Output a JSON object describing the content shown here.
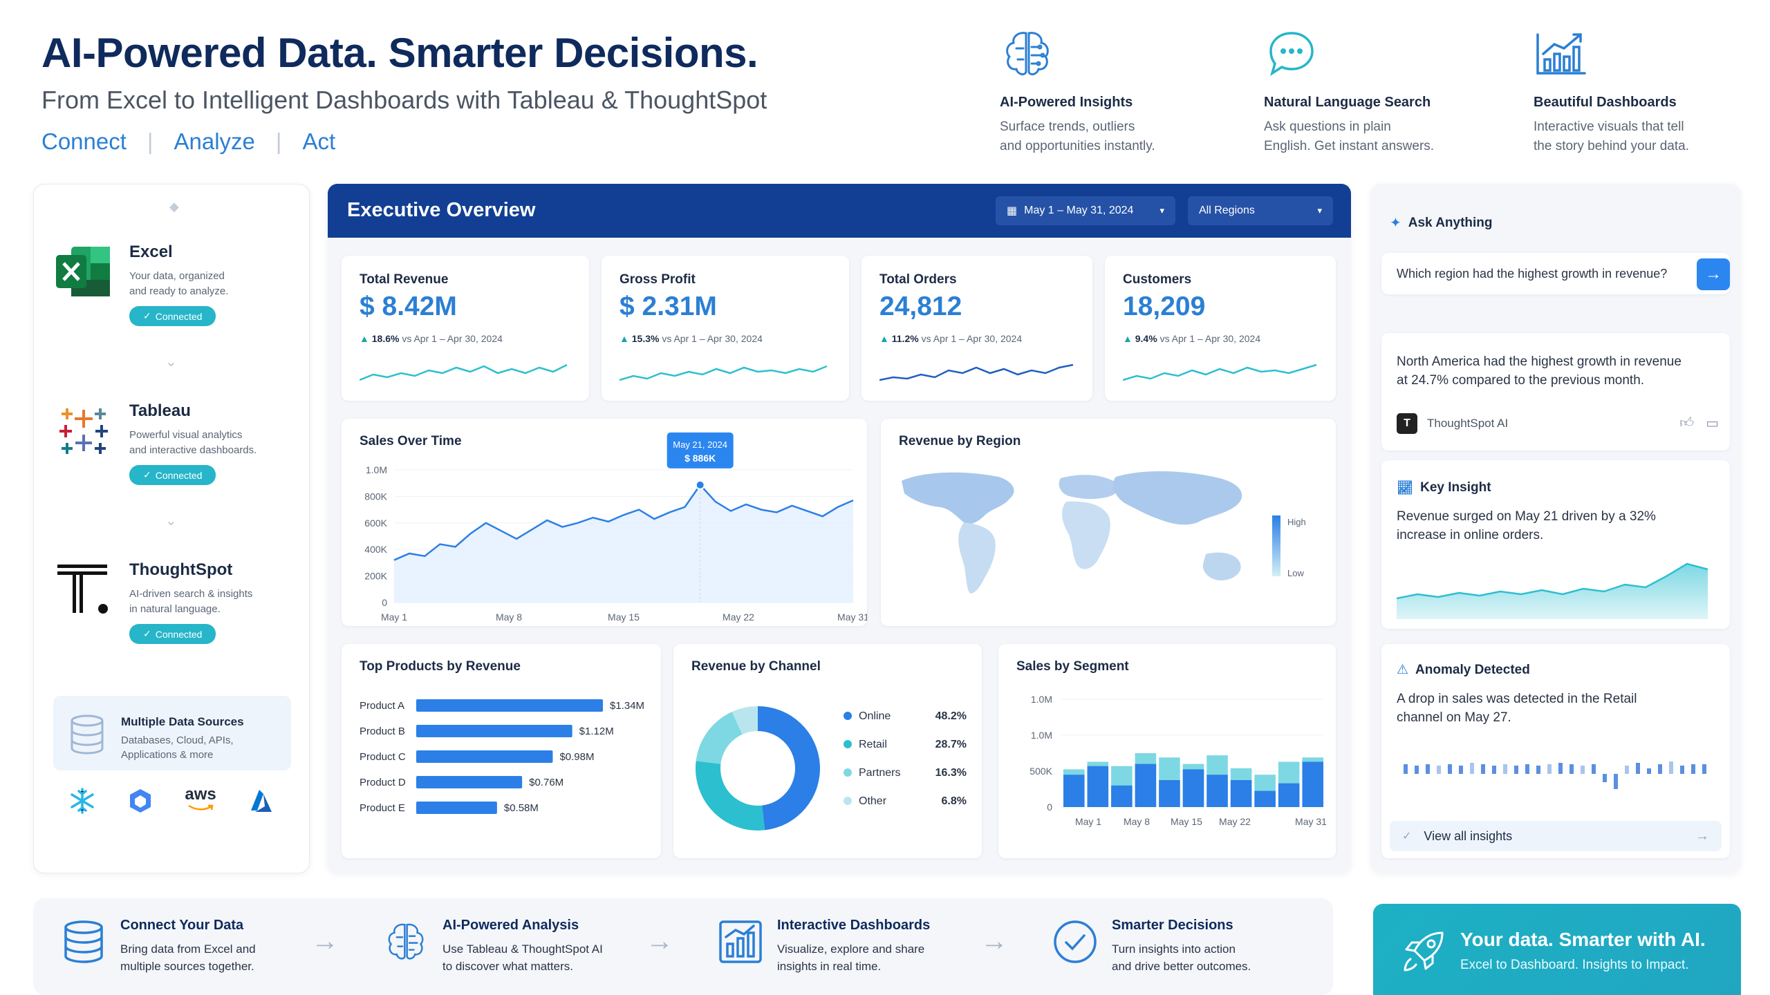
{
  "header": {
    "title": "AI-Powered Data. Smarter Decisions.",
    "subtitle": "From Excel to Intelligent Dashboards with Tableau & ThoughtSpot",
    "links": [
      "Connect",
      "Analyze",
      "Act"
    ]
  },
  "features": [
    {
      "icon": "brain-circuit-icon",
      "title": "AI-Powered Insights",
      "desc1": "Surface trends, outliers",
      "desc2": "and opportunities instantly."
    },
    {
      "icon": "chat-bubble-icon",
      "title": "Natural Language Search",
      "desc1": "Ask questions in plain",
      "desc2": "English. Get instant answers."
    },
    {
      "icon": "bar-chart-trend-icon",
      "title": "Beautiful Dashboards",
      "desc1": "Interactive visuals that tell",
      "desc2": "the story behind your data."
    }
  ],
  "sources": [
    {
      "name": "Excel",
      "desc1": "Your data, organized",
      "desc2": "and ready to analyze.",
      "status": "Connected"
    },
    {
      "name": "Tableau",
      "desc1": "Powerful visual analytics",
      "desc2": "and interactive dashboards.",
      "status": "Connected"
    },
    {
      "name": "ThoughtSpot",
      "desc1": "AI-driven search & insights",
      "desc2": "in natural language.",
      "status": "Connected"
    }
  ],
  "multi_sources": {
    "title": "Multiple Data Sources",
    "desc1": "Databases, Cloud, APIs,",
    "desc2": "Applications & more",
    "aws": "aws"
  },
  "dashboard": {
    "title": "Executive Overview",
    "date_filter": "May 1 – May 31, 2024",
    "region_filter": "All Regions",
    "kpis": [
      {
        "label": "Total Revenue",
        "value": "$ 8.42M",
        "change": "18.6%",
        "compare": "vs Apr 1 – Apr 30, 2024"
      },
      {
        "label": "Gross Profit",
        "value": "$ 2.31M",
        "change": "15.3%",
        "compare": "vs Apr 1 – Apr 30, 2024"
      },
      {
        "label": "Total Orders",
        "value": "24,812",
        "change": "11.2%",
        "compare": "vs Apr 1 – Apr 30, 2024"
      },
      {
        "label": "Customers",
        "value": "18,209",
        "change": "9.4%",
        "compare": "vs Apr 1 – Apr 30, 2024"
      }
    ],
    "sales_title": "Sales Over Time",
    "tooltip_date": "May 21, 2024",
    "tooltip_value": "$ 886K",
    "region_title": "Revenue by Region",
    "legend_high": "High",
    "legend_low": "Low",
    "products_title": "Top Products by Revenue",
    "channel_title": "Revenue by Channel",
    "segment_title": "Sales by Segment"
  },
  "chart_data": [
    {
      "type": "line",
      "title": "Sales Over Time",
      "x_labels": [
        "May 1",
        "May 8",
        "May 15",
        "May 22",
        "May 31"
      ],
      "y_ticks": [
        "1.0M",
        "800K",
        "600K",
        "400K",
        "200K",
        "0"
      ],
      "ylim": [
        0,
        1000000
      ],
      "values": [
        320000,
        370000,
        350000,
        440000,
        420000,
        520000,
        600000,
        540000,
        480000,
        550000,
        620000,
        570000,
        600000,
        640000,
        610000,
        660000,
        700000,
        630000,
        680000,
        720000,
        886000,
        760000,
        690000,
        740000,
        700000,
        680000,
        730000,
        690000,
        650000,
        720000,
        770000
      ],
      "highlight_index": 20
    },
    {
      "type": "bar",
      "title": "Top Products by Revenue",
      "categories": [
        "Product A",
        "Product B",
        "Product C",
        "Product D",
        "Product E"
      ],
      "values": [
        1.34,
        1.12,
        0.98,
        0.76,
        0.58
      ],
      "labels": [
        "$1.34M",
        "$1.12M",
        "$0.98M",
        "$0.76M",
        "$0.58M"
      ]
    },
    {
      "type": "pie",
      "title": "Revenue by Channel",
      "categories": [
        "Online",
        "Retail",
        "Partners",
        "Other"
      ],
      "values": [
        48.2,
        28.7,
        16.3,
        6.8
      ],
      "labels": [
        "48.2%",
        "28.7%",
        "16.3%",
        "6.8%"
      ],
      "colors": [
        "#2b7fe6",
        "#2cbfcf",
        "#7dd8e3",
        "#b9e6ee"
      ]
    },
    {
      "type": "bar",
      "title": "Sales by Segment",
      "x_labels": [
        "May 1",
        "May 8",
        "May 15",
        "May 22",
        "May 31"
      ],
      "y_ticks": [
        "1.0M",
        "1.0M",
        "500K",
        "0"
      ],
      "ylim": [
        0,
        1000000
      ],
      "series": [
        {
          "values": [
            350000,
            420000,
            380000,
            500000,
            460000,
            400000,
            480000,
            360000,
            300000,
            420000,
            460000
          ]
        },
        {
          "values": [
            300000,
            380000,
            200000,
            400000,
            250000,
            350000,
            300000,
            250000,
            150000,
            220000,
            420000
          ]
        }
      ]
    }
  ],
  "right": {
    "ask_title": "Ask Anything",
    "ask_placeholder": "Which region had the highest growth in revenue?",
    "answer1": "North America had the highest growth in revenue",
    "answer2": "at 24.7% compared to the previous month.",
    "answer_source": "ThoughtSpot AI",
    "insight_title": "Key Insight",
    "insight1": "Revenue surged on May 21 driven by a 32%",
    "insight2": "increase in online orders.",
    "anomaly_title": "Anomaly Detected",
    "anomaly1": "A drop in sales was detected in the Retail",
    "anomaly2": "channel on May 27.",
    "view_all": "View all insights"
  },
  "steps": [
    {
      "title": "Connect Your Data",
      "d1": "Bring data from Excel and",
      "d2": "multiple sources together."
    },
    {
      "title": "AI-Powered Analysis",
      "d1": "Use Tableau & ThoughtSpot AI",
      "d2": "to discover what matters."
    },
    {
      "title": "Interactive Dashboards",
      "d1": "Visualize, explore and share",
      "d2": "insights in real time."
    },
    {
      "title": "Smarter Decisions",
      "d1": "Turn insights into action",
      "d2": "and drive better outcomes."
    }
  ],
  "cta": {
    "title": "Your data. Smarter with AI.",
    "sub": "Excel to Dashboard. Insights to Impact."
  },
  "colors": {
    "brand_navy": "#0f2a5c",
    "accent_blue": "#2b7fd4",
    "header_blue": "#123f93",
    "teal": "#26b5c9"
  }
}
